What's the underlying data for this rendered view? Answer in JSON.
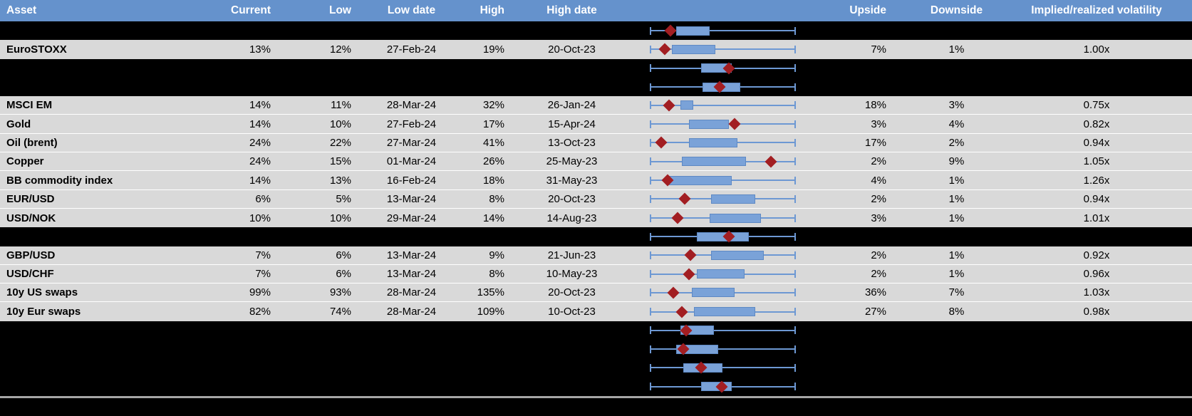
{
  "chart_data": {
    "type": "table",
    "columns": {
      "asset": "Asset",
      "current": "Current",
      "low": "Low",
      "low_date": "Low date",
      "high": "High",
      "high_date": "High date",
      "plot": "",
      "upside": "Upside",
      "downside": "Downside",
      "implied_realized": "Implied/realized volatility"
    },
    "embedded_chart": {
      "type": "boxplot",
      "orientation": "horizontal",
      "whisker_span": "full column width, identical for every row (normalized low-to-high range)",
      "box_fractions_note": "lo/hi/marker are fractions 0-1 of the whisker span read from pixels",
      "marker_shape": "red diamond"
    },
    "rows": [
      {
        "hidden": true,
        "asset": "",
        "current": "",
        "low": "",
        "low_date": "",
        "high": "",
        "high_date": "",
        "upside": "",
        "downside": "",
        "implied_realized": "",
        "box": {
          "lo": 0.18,
          "hi": 0.41,
          "marker": 0.14
        }
      },
      {
        "hidden": false,
        "asset": "EuroSTOXX",
        "current": "13%",
        "low": "12%",
        "low_date": "27-Feb-24",
        "high": "19%",
        "high_date": "20-Oct-23",
        "upside": "7%",
        "downside": "1%",
        "implied_realized": "1.00x",
        "box": {
          "lo": 0.15,
          "hi": 0.45,
          "marker": 0.1
        }
      },
      {
        "hidden": true,
        "asset": "",
        "current": "",
        "low": "",
        "low_date": "",
        "high": "",
        "high_date": "",
        "upside": "",
        "downside": "",
        "implied_realized": "",
        "box": {
          "lo": 0.35,
          "hi": 0.56,
          "marker": 0.54
        }
      },
      {
        "hidden": true,
        "asset": "",
        "current": "",
        "low": "",
        "low_date": "",
        "high": "",
        "high_date": "",
        "upside": "",
        "downside": "",
        "implied_realized": "",
        "box": {
          "lo": 0.36,
          "hi": 0.62,
          "marker": 0.48
        }
      },
      {
        "hidden": false,
        "asset": "MSCI EM",
        "current": "14%",
        "low": "11%",
        "low_date": "28-Mar-24",
        "high": "32%",
        "high_date": "26-Jan-24",
        "upside": "18%",
        "downside": "3%",
        "implied_realized": "0.75x",
        "box": {
          "lo": 0.21,
          "hi": 0.3,
          "marker": 0.13
        }
      },
      {
        "hidden": false,
        "asset": "Gold",
        "current": "14%",
        "low": "10%",
        "low_date": "27-Feb-24",
        "high": "17%",
        "high_date": "15-Apr-24",
        "upside": "3%",
        "downside": "4%",
        "implied_realized": "0.82x",
        "box": {
          "lo": 0.27,
          "hi": 0.54,
          "marker": 0.58
        }
      },
      {
        "hidden": false,
        "asset": "Oil (brent)",
        "current": "24%",
        "low": "22%",
        "low_date": "27-Mar-24",
        "high": "41%",
        "high_date": "13-Oct-23",
        "upside": "17%",
        "downside": "2%",
        "implied_realized": "0.94x",
        "box": {
          "lo": 0.27,
          "hi": 0.6,
          "marker": 0.08
        }
      },
      {
        "hidden": false,
        "asset": "Copper",
        "current": "24%",
        "low": "15%",
        "low_date": "01-Mar-24",
        "high": "26%",
        "high_date": "25-May-23",
        "upside": "2%",
        "downside": "9%",
        "implied_realized": "1.05x",
        "box": {
          "lo": 0.22,
          "hi": 0.66,
          "marker": 0.83
        }
      },
      {
        "hidden": false,
        "asset": "BB commodity index",
        "current": "14%",
        "low": "13%",
        "low_date": "16-Feb-24",
        "high": "18%",
        "high_date": "31-May-23",
        "upside": "4%",
        "downside": "1%",
        "implied_realized": "1.26x",
        "box": {
          "lo": 0.13,
          "hi": 0.56,
          "marker": 0.12
        }
      },
      {
        "hidden": false,
        "asset": "EUR/USD",
        "current": "6%",
        "low": "5%",
        "low_date": "13-Mar-24",
        "high": "8%",
        "high_date": "20-Oct-23",
        "upside": "2%",
        "downside": "1%",
        "implied_realized": "0.94x",
        "box": {
          "lo": 0.42,
          "hi": 0.72,
          "marker": 0.24
        }
      },
      {
        "hidden": false,
        "asset": "USD/NOK",
        "current": "10%",
        "low": "10%",
        "low_date": "29-Mar-24",
        "high": "14%",
        "high_date": "14-Aug-23",
        "upside": "3%",
        "downside": "1%",
        "implied_realized": "1.01x",
        "box": {
          "lo": 0.41,
          "hi": 0.76,
          "marker": 0.19
        }
      },
      {
        "hidden": true,
        "asset": "",
        "current": "",
        "low": "",
        "low_date": "",
        "high": "",
        "high_date": "",
        "upside": "",
        "downside": "",
        "implied_realized": "",
        "box": {
          "lo": 0.32,
          "hi": 0.68,
          "marker": 0.54
        }
      },
      {
        "hidden": false,
        "asset": "GBP/USD",
        "current": "7%",
        "low": "6%",
        "low_date": "13-Mar-24",
        "high": "9%",
        "high_date": "21-Jun-23",
        "upside": "2%",
        "downside": "1%",
        "implied_realized": "0.92x",
        "box": {
          "lo": 0.42,
          "hi": 0.78,
          "marker": 0.28
        }
      },
      {
        "hidden": false,
        "asset": "USD/CHF",
        "current": "7%",
        "low": "6%",
        "low_date": "13-Mar-24",
        "high": "8%",
        "high_date": "10-May-23",
        "upside": "2%",
        "downside": "1%",
        "implied_realized": "0.96x",
        "box": {
          "lo": 0.32,
          "hi": 0.65,
          "marker": 0.27
        }
      },
      {
        "hidden": false,
        "asset": "10y US swaps",
        "current": "99%",
        "low": "93%",
        "low_date": "28-Mar-24",
        "high": "135%",
        "high_date": "20-Oct-23",
        "upside": "36%",
        "downside": "7%",
        "implied_realized": "1.03x",
        "box": {
          "lo": 0.29,
          "hi": 0.58,
          "marker": 0.16
        }
      },
      {
        "hidden": false,
        "asset": "10y Eur swaps",
        "current": "82%",
        "low": "74%",
        "low_date": "28-Mar-24",
        "high": "109%",
        "high_date": "10-Oct-23",
        "upside": "27%",
        "downside": "8%",
        "implied_realized": "0.98x",
        "box": {
          "lo": 0.3,
          "hi": 0.72,
          "marker": 0.22
        }
      },
      {
        "hidden": true,
        "asset": "",
        "current": "",
        "low": "",
        "low_date": "",
        "high": "",
        "high_date": "",
        "upside": "",
        "downside": "",
        "implied_realized": "",
        "box": {
          "lo": 0.21,
          "hi": 0.44,
          "marker": 0.25
        }
      },
      {
        "hidden": true,
        "asset": "",
        "current": "",
        "low": "",
        "low_date": "",
        "high": "",
        "high_date": "",
        "upside": "",
        "downside": "",
        "implied_realized": "",
        "box": {
          "lo": 0.18,
          "hi": 0.47,
          "marker": 0.23
        }
      },
      {
        "hidden": true,
        "asset": "",
        "current": "",
        "low": "",
        "low_date": "",
        "high": "",
        "high_date": "",
        "upside": "",
        "downside": "",
        "implied_realized": "",
        "box": {
          "lo": 0.23,
          "hi": 0.5,
          "marker": 0.35
        }
      },
      {
        "hidden": true,
        "asset": "",
        "current": "",
        "low": "",
        "low_date": "",
        "high": "",
        "high_date": "",
        "upside": "",
        "downside": "",
        "implied_realized": "",
        "box": {
          "lo": 0.35,
          "hi": 0.56,
          "marker": 0.49
        }
      }
    ],
    "colors": {
      "header_bg": "#6592cc",
      "header_text": "#ffffff",
      "row_bg": "#d9d9d9",
      "hidden_row_bg": "#000000",
      "whisker": "#6d98d3",
      "box_fill": "#7aa2d8",
      "box_border": "#5e89c4",
      "marker": "#a21e22",
      "divider": "#a6a6a6"
    }
  }
}
